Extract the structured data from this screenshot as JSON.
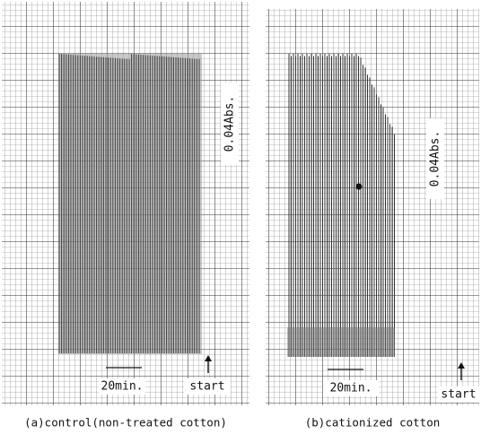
{
  "panels": [
    {
      "scale_label": "0.04Abs.",
      "time_label": "20min.",
      "start_label": "start",
      "caption": "(a)control(non-treated cotton)"
    },
    {
      "scale_label": "0.04Abs.",
      "time_label": "20min.",
      "start_label": "start",
      "caption": "(b)cationized cotton"
    }
  ]
}
